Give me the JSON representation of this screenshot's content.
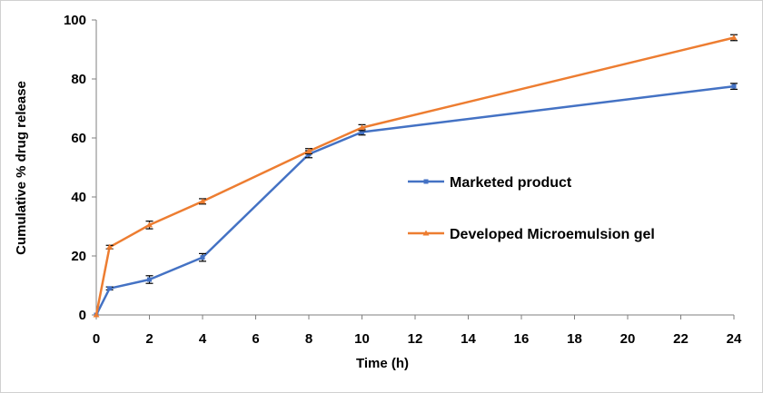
{
  "chart_data": {
    "type": "line",
    "title": "",
    "xlabel": "Time (h)",
    "ylabel": "Cumulative % drug release",
    "xlim": [
      0,
      24
    ],
    "ylim": [
      0,
      100
    ],
    "xticks": [
      0,
      2,
      4,
      6,
      8,
      10,
      12,
      14,
      16,
      18,
      20,
      22,
      24
    ],
    "yticks": [
      0,
      20,
      40,
      60,
      80,
      100
    ],
    "grid": false,
    "legend_position": "right",
    "series": [
      {
        "name": "Marketed product",
        "color": "#4472C4",
        "marker": "square",
        "x": [
          0,
          0.5,
          2,
          4,
          8,
          10,
          24
        ],
        "y": [
          0,
          9,
          12,
          19.5,
          54.5,
          62,
          77.5
        ],
        "error": [
          0,
          0.5,
          1.3,
          1.3,
          1.2,
          1.0,
          1.0
        ]
      },
      {
        "name": "Developed Microemulsion gel",
        "color": "#ED7D31",
        "marker": "triangle",
        "x": [
          0,
          0.5,
          2,
          4,
          8,
          10,
          24
        ],
        "y": [
          0,
          23,
          30.5,
          38.5,
          55.5,
          63.5,
          94
        ],
        "error": [
          0,
          0.6,
          1.3,
          0.9,
          0.9,
          1.0,
          1.0
        ]
      }
    ]
  }
}
